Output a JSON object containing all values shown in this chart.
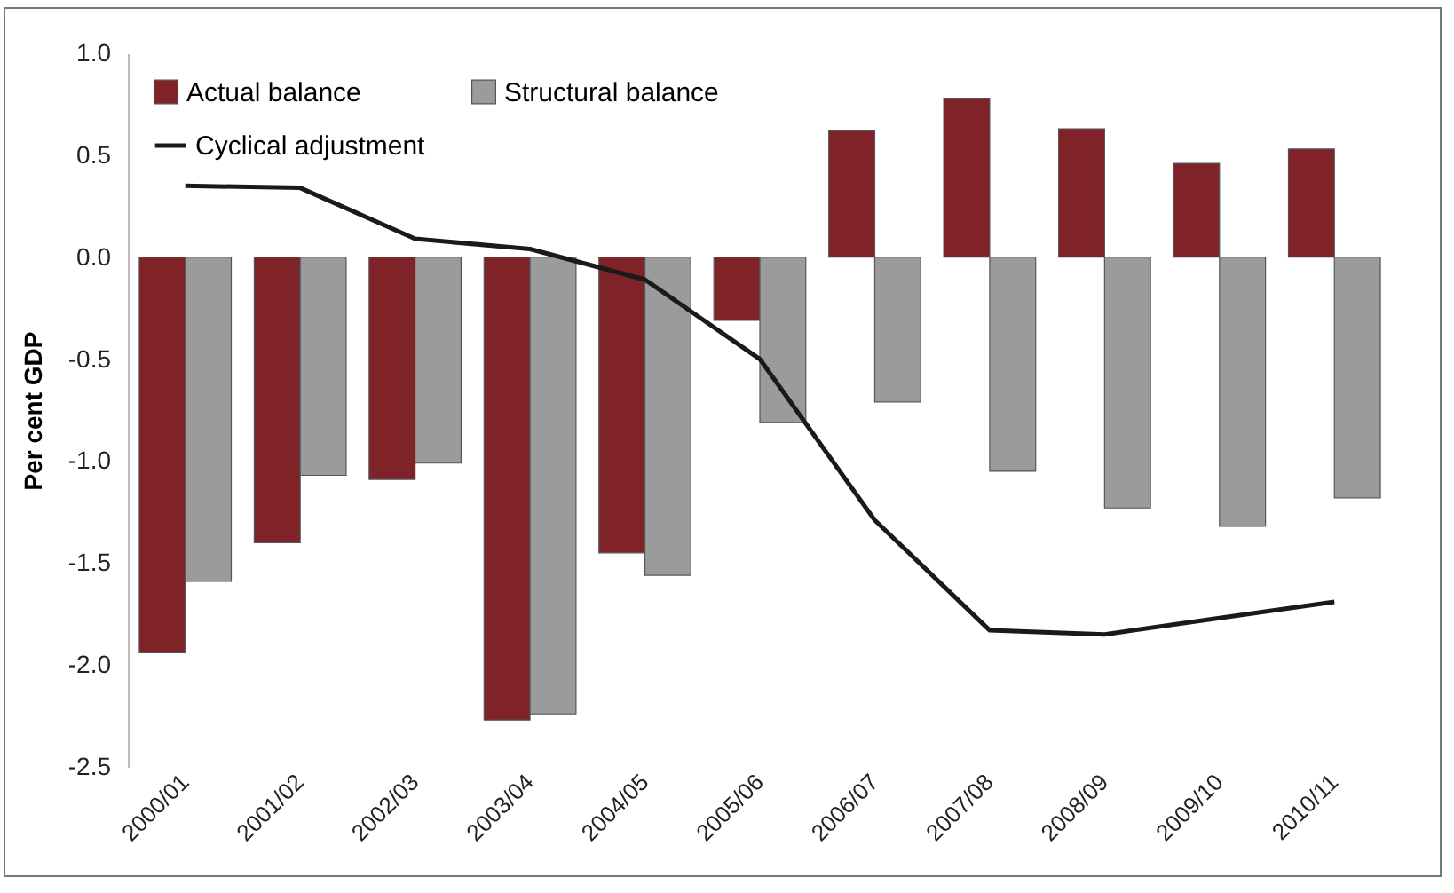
{
  "chart_data": {
    "type": "bar",
    "ylabel": "Per cent GDP",
    "legend": "top left",
    "categories": [
      "2000/01",
      "2001/02",
      "2002/03",
      "2003/04",
      "2004/05",
      "2005/06",
      "2006/07",
      "2007/08",
      "2008/09",
      "2009/10",
      "2010/11"
    ],
    "ylim": [
      -2.5,
      1.0
    ],
    "yticks": [
      {
        "value": -2.5,
        "label": "-2.5"
      },
      {
        "value": -2,
        "label": "-2.0"
      },
      {
        "value": -1.5,
        "label": "-1.5"
      },
      {
        "value": -1,
        "label": "-1.0"
      },
      {
        "value": -0.5,
        "label": "-0.5"
      },
      {
        "value": 0,
        "label": "0.0"
      },
      {
        "value": 0.5,
        "label": "0.5"
      },
      {
        "value": 1,
        "label": "1.0"
      }
    ],
    "series": [
      {
        "name": "Actual balance",
        "color": "#7f2328",
        "values": [
          -1.94,
          -1.4,
          -1.09,
          -2.27,
          -1.45,
          -0.31,
          0.62,
          0.78,
          0.63,
          0.46,
          0.53
        ]
      },
      {
        "name": "Structural balance",
        "color": "#9b9b9b",
        "values": [
          -1.59,
          -1.07,
          -1.01,
          -2.24,
          -1.56,
          -0.81,
          -0.71,
          -1.05,
          -1.23,
          -1.32,
          -1.18
        ]
      },
      {
        "name": "Cyclical adjustment",
        "type": "line",
        "color": "#1a1a1a",
        "values": [
          0.35,
          0.34,
          0.09,
          0.04,
          -0.11,
          -0.5,
          -1.29,
          -1.83,
          -1.85,
          -1.77,
          -1.69
        ]
      }
    ]
  }
}
